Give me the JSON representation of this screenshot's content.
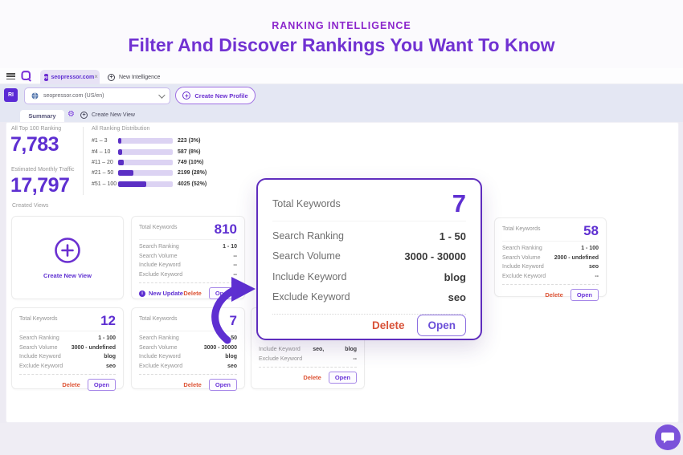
{
  "colors": {
    "accent": "#5e2fd1",
    "eyebrow": "#8b25cc",
    "title": "#7132d2",
    "delete": "#dd5334",
    "bar_fill": "#5b2fc4",
    "bar_track": "#dcd3f3",
    "toolbar_bg": "#e4e7f3",
    "popup_border": "#5f2dbe"
  },
  "icons": {
    "close": "×",
    "gear": "⚙",
    "plus": "+",
    "info": "i",
    "hamburger": "menu",
    "chevron": "down"
  },
  "page": {
    "eyebrow": "RANKING INTELLIGENCE",
    "title": "Filter And Discover Rankings You Want To Know"
  },
  "browser": {
    "active_tab": {
      "badge": "RI",
      "label": "seopressor.com"
    },
    "second_tab": {
      "label": "New Intelligence"
    }
  },
  "toolbar": {
    "profile_badge": "RI",
    "domain_select_value": "seopressor.com (US/en)",
    "create_profile_label": "Create New Profile"
  },
  "view_tabs": {
    "summary": "Summary",
    "create_new_view": "Create New View"
  },
  "summary": {
    "top_ranking_label": "All Top 100 Ranking",
    "top_ranking_value": "7,783",
    "traffic_label": "Estimated Monthly Traffic",
    "traffic_value": "17,797",
    "distribution_label": "All Ranking Distribution",
    "distribution": [
      {
        "range": "#1 – 3",
        "value": "223 (3%)",
        "pct": 3
      },
      {
        "range": "#4 – 10",
        "value": "587 (8%)",
        "pct": 8
      },
      {
        "range": "#11 – 20",
        "value": "749 (10%)",
        "pct": 10
      },
      {
        "range": "#21 – 50",
        "value": "2199 (28%)",
        "pct": 28
      },
      {
        "range": "#51 – 100",
        "value": "4025 (52%)",
        "pct": 52
      }
    ]
  },
  "created_views": {
    "section_label": "Created Views",
    "create_new_view_label": "Create New View",
    "labels": {
      "total": "Total Keywords",
      "ranking": "Search Ranking",
      "volume": "Search Volume",
      "include": "Include Keyword",
      "exclude": "Exclude Keyword"
    },
    "delete_label": "Delete",
    "open_label": "Open",
    "new_update_label": "New Update",
    "cards": [
      {
        "total": "810",
        "ranking": "1 - 10",
        "volume": "--",
        "include": "--",
        "exclude": "--"
      },
      {
        "total": "58",
        "ranking": "1 - 100",
        "volume": "2000 - undefined",
        "include": "seo",
        "exclude": "--"
      },
      {
        "total": "12",
        "ranking": "1 - 100",
        "volume": "3000 - undefined",
        "include": "blog",
        "exclude": "seo"
      },
      {
        "total": "7",
        "ranking": "1 - 50",
        "volume": "3000 - 30000",
        "include": "blog",
        "exclude": "seo"
      },
      {
        "include_a": "seo,",
        "include_b": "blog",
        "exclude": "--"
      }
    ]
  },
  "popup": {
    "total_label": "Total Keywords",
    "total_value": "7",
    "rows": [
      {
        "label": "Search Ranking",
        "value": "1 - 50"
      },
      {
        "label": "Search Volume",
        "value": "3000 - 30000"
      },
      {
        "label": "Include Keyword",
        "value": "blog"
      },
      {
        "label": "Exclude Keyword",
        "value": "seo"
      }
    ],
    "delete_label": "Delete",
    "open_label": "Open"
  }
}
